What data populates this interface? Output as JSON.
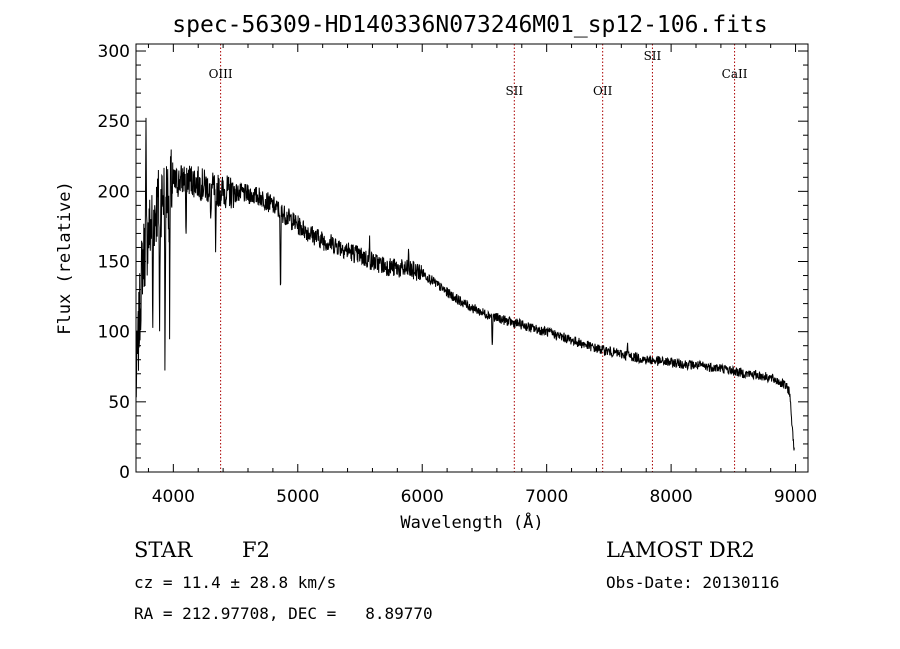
{
  "chart_data": {
    "type": "line",
    "title": "spec-56309-HD140336N073246M01_sp12-106.fits",
    "xlabel": "Wavelength (Å)",
    "ylabel": "Flux (relative)",
    "xlim": [
      3700,
      9100
    ],
    "ylim": [
      0,
      305
    ],
    "xticks": [
      4000,
      5000,
      6000,
      7000,
      8000,
      9000
    ],
    "yticks": [
      0,
      50,
      100,
      150,
      200,
      250,
      300
    ],
    "grid": false,
    "spectrum_anchors": {
      "x": [
        3700,
        3750,
        3800,
        3850,
        3900,
        3950,
        4000,
        4100,
        4200,
        4300,
        4400,
        4500,
        4600,
        4700,
        4800,
        4900,
        5000,
        5100,
        5200,
        5300,
        5400,
        5500,
        5600,
        5700,
        5800,
        5900,
        6000,
        6100,
        6200,
        6300,
        6400,
        6500,
        6600,
        6700,
        6800,
        6900,
        7000,
        7100,
        7200,
        7300,
        7400,
        7500,
        7600,
        7700,
        7800,
        7900,
        8000,
        8100,
        8200,
        8300,
        8400,
        8500,
        8600,
        8700,
        8800,
        8900,
        8950,
        8990
      ],
      "y": [
        60,
        150,
        170,
        185,
        195,
        200,
        205,
        210,
        206,
        202,
        200,
        199,
        198,
        196,
        190,
        183,
        176,
        170,
        165,
        162,
        158,
        154,
        150,
        147,
        145,
        144,
        142,
        135,
        128,
        122,
        117,
        113,
        110,
        107,
        105,
        102,
        100,
        97,
        94,
        91,
        88,
        86,
        84,
        82,
        80,
        79,
        78,
        77,
        76,
        75,
        74,
        72,
        70,
        69,
        67,
        63,
        58,
        15
      ]
    },
    "absorption_features": [
      {
        "x": 3835,
        "depth": 90
      },
      {
        "x": 3890,
        "depth": 100
      },
      {
        "x": 3934,
        "depth": 135
      },
      {
        "x": 3970,
        "depth": 95
      },
      {
        "x": 4102,
        "depth": 55
      },
      {
        "x": 4300,
        "depth": 30
      },
      {
        "x": 4340,
        "depth": 55
      },
      {
        "x": 4861,
        "depth": 70
      },
      {
        "x": 6563,
        "depth": 25
      }
    ],
    "emission_features": [
      {
        "x": 3780,
        "height": 70
      },
      {
        "x": 5577,
        "height": 15
      },
      {
        "x": 5890,
        "height": 12
      },
      {
        "x": 7650,
        "height": 8
      }
    ],
    "line_markers": [
      {
        "label": "OIII",
        "x": 4380,
        "label_level": "high"
      },
      {
        "label": "SII",
        "x": 6740,
        "label_level": "low"
      },
      {
        "label": "OII",
        "x": 7450,
        "label_level": "low"
      },
      {
        "label": "SII",
        "x": 7850,
        "label_level": "top"
      },
      {
        "label": "CaII",
        "x": 8510,
        "label_level": "high"
      }
    ]
  },
  "info": {
    "object_type": "STAR",
    "subclass": "F2",
    "survey": "LAMOST DR2",
    "cz": "cz = 11.4 ± 28.8 km/s",
    "obs_date": "Obs-Date: 20130116",
    "coords": "RA = 212.97708, DEC =   8.89770"
  },
  "colors": {
    "spectrum": "#000000",
    "marker_line": "#aa0000",
    "axis": "#000000"
  }
}
